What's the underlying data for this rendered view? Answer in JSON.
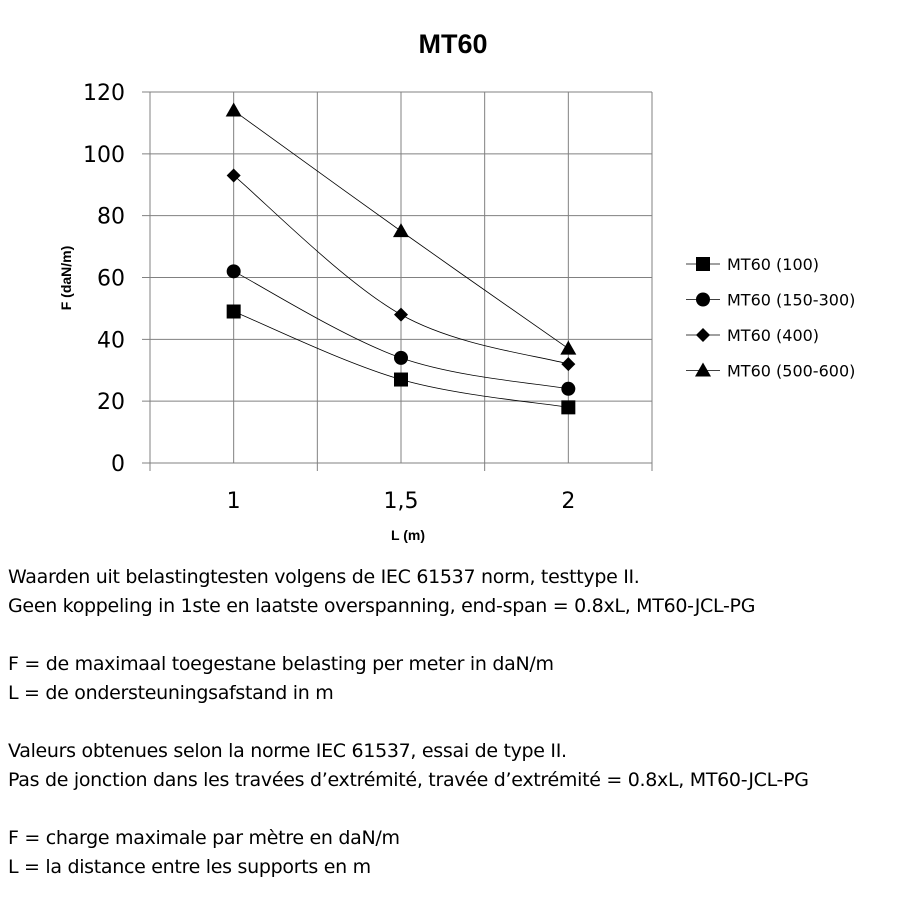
{
  "chart_data": {
    "type": "line",
    "title": "MT60",
    "xlabel": "L (m)",
    "ylabel": "F (daN/m)",
    "categories": [
      "1",
      "1,5",
      "2"
    ],
    "ylim": [
      0,
      120
    ],
    "yticks": [
      "0",
      "20",
      "40",
      "60",
      "80",
      "100",
      "120"
    ],
    "grid": true,
    "smoothed": true,
    "legend_position": "right",
    "color": "#000000",
    "series": [
      {
        "name": "MT60 (100)",
        "marker": "square",
        "values": [
          49,
          27,
          18
        ]
      },
      {
        "name": "MT60 (150-300)",
        "marker": "circle",
        "values": [
          62,
          34,
          24
        ]
      },
      {
        "name": "MT60 (400)",
        "marker": "diamond",
        "values": [
          93,
          48,
          32
        ]
      },
      {
        "name": "MT60 (500-600)",
        "marker": "triangle",
        "values": [
          114,
          75,
          37
        ]
      }
    ]
  },
  "notes": [
    "Waarden uit belastingtesten volgens de IEC 61537 norm, testtype II.",
    "Geen koppeling in 1ste en laatste overspanning, end-span = 0.8xL, MT60-JCL-PG",
    "",
    "F = de maximaal toegestane belasting per meter in daN/m",
    "L = de ondersteuningsafstand in m",
    "",
    "Valeurs obtenues selon la norme IEC 61537, essai de type II.",
    "Pas de jonction dans les travées d’extrémité, travée d’extrémité = 0.8xL, MT60-JCL-PG",
    "",
    "F = charge maximale par mètre en daN/m",
    "L = la distance entre les supports en m"
  ]
}
